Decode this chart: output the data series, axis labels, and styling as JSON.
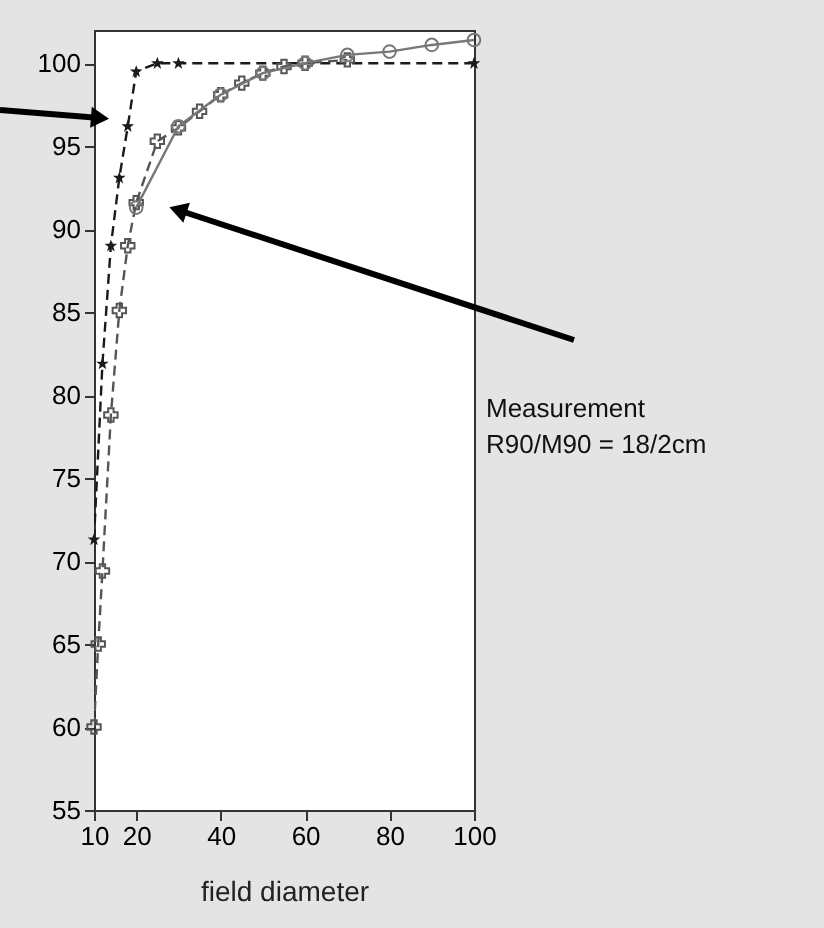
{
  "chart_data": {
    "type": "line",
    "xlabel": "field diameter",
    "annotations": [
      "Measurement\nR90/M90 = 18/2cm"
    ],
    "xlim": [
      10,
      100
    ],
    "ylim": [
      55,
      102
    ],
    "xticks": [
      10,
      20,
      40,
      60,
      80,
      100
    ],
    "yticks": [
      55,
      60,
      65,
      70,
      75,
      80,
      85,
      90,
      95,
      100
    ],
    "grid": false,
    "series": [
      {
        "color": "#1a1a1a",
        "marker": "star",
        "line_style": "dashed",
        "x": [
          10,
          12,
          14,
          16,
          18,
          20,
          25,
          30,
          100
        ],
        "values": [
          71.3,
          81.9,
          89,
          93.1,
          96.2,
          99.5,
          100,
          100,
          100
        ]
      },
      {
        "color": "#555555",
        "marker": "cross",
        "line_style": "dashed",
        "x": [
          10,
          11,
          12,
          14,
          16,
          18,
          20,
          25,
          30,
          35,
          40,
          45,
          50,
          55,
          60,
          70
        ],
        "values": [
          60,
          65,
          69.4,
          78.8,
          85.1,
          89,
          91.6,
          95.3,
          96.1,
          97.1,
          98.1,
          98.8,
          99.4,
          99.8,
          100,
          100.2
        ]
      },
      {
        "color": "#777777",
        "marker": "circle",
        "line_style": "solid",
        "x": [
          20,
          30,
          40,
          50,
          60,
          70,
          80,
          90,
          100
        ],
        "values": [
          91.3,
          96.2,
          98.1,
          99.4,
          100,
          100.5,
          100.7,
          101.1,
          101.4
        ]
      }
    ]
  }
}
